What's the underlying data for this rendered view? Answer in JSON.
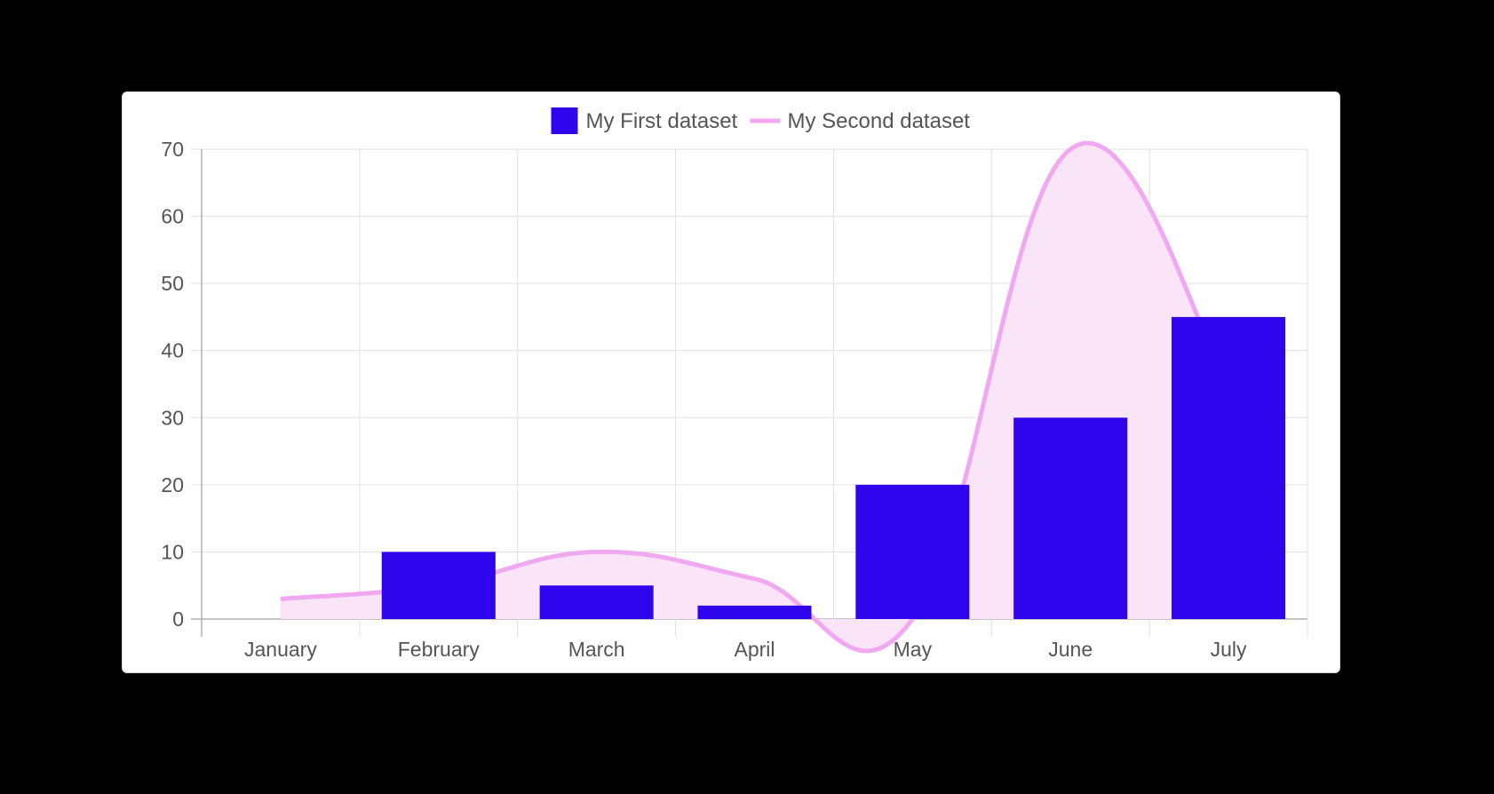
{
  "chart_data": {
    "type": "bar",
    "categories": [
      "January",
      "February",
      "March",
      "April",
      "May",
      "June",
      "July"
    ],
    "series": [
      {
        "name": "My First dataset",
        "type": "bar",
        "values": [
          0,
          10,
          5,
          2,
          20,
          30,
          45
        ],
        "color": "#2f05ee"
      },
      {
        "name": "My Second dataset",
        "type": "area",
        "values": [
          3,
          5,
          10,
          6,
          0,
          70,
          35
        ],
        "color": "#f0a8f0",
        "fill": "#f9e4f8"
      }
    ],
    "ylim": [
      0,
      70
    ],
    "yticks": [
      0,
      10,
      20,
      30,
      40,
      50,
      60,
      70
    ],
    "grid": true,
    "legend": "top-center",
    "colors": {
      "grid": "#e0e0e0",
      "axis": "#b0b0b0",
      "text": "#555555"
    }
  }
}
